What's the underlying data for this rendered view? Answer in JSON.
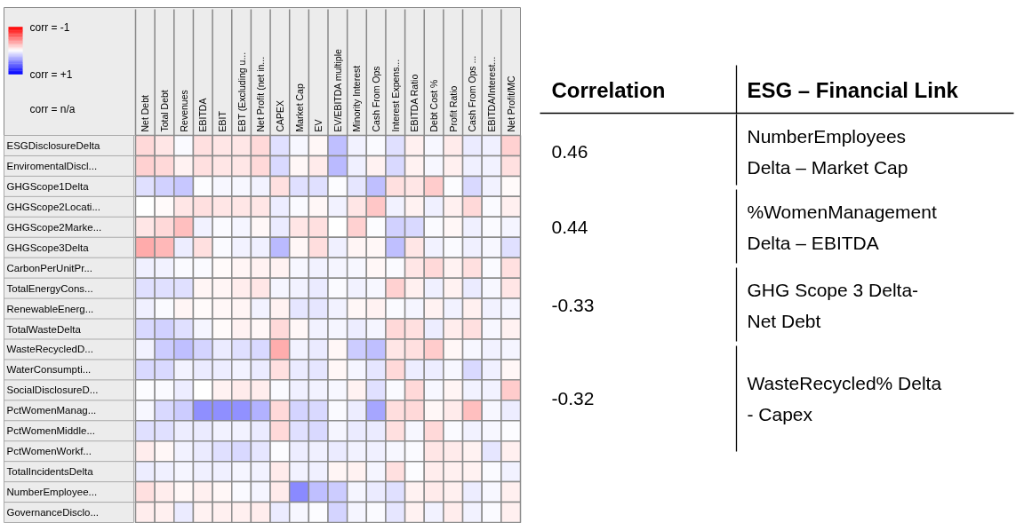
{
  "chart_data": [
    {
      "type": "heatmap",
      "categories": [
        "Net Debt",
        "Total Debt",
        "Revenues",
        "EBITDA",
        "EBIT",
        "EBT (Excluding u...",
        "Net Profit (net in...",
        "CAPEX",
        "Market Cap",
        "EV",
        "EV/EBITDA multiple",
        "Minority Interest",
        "Cash From Ops",
        "Interest Expens...",
        "EBITDA Ratio",
        "Debt Cost %",
        "Profit Ratio",
        "Cash From Ops ...",
        "EBITDA/Interest...",
        "Net Profit/MC"
      ],
      "y_categories": [
        "ESGDisclosureDelta",
        "EnviromentalDiscl...",
        "GHGScope1Delta",
        "GHGScope2Locati...",
        "GHGScope2Marke...",
        "GHGScope3Delta",
        "CarbonPerUnitPr...",
        "TotalEnergyCons...",
        "RenewableEnerg...",
        "TotalWasteDelta",
        "WasteRecycledD...",
        "WaterConsumpti...",
        "SocialDisclosureD...",
        "PctWomenManag...",
        "PctWomenMiddle...",
        "PctWomenWorkf...",
        "TotalIncidentsDelta",
        "NumberEmployee...",
        "GovernanceDisclo..."
      ],
      "cells": [
        [
          -0.15,
          -0.1,
          0.02,
          -0.12,
          -0.1,
          -0.1,
          -0.15,
          0.12,
          0.03,
          -0.03,
          0.25,
          0.05,
          0.02,
          0.12,
          -0.06,
          0.03,
          -0.08,
          0.08,
          0.06,
          -0.18
        ],
        [
          -0.18,
          -0.15,
          -0.05,
          -0.12,
          -0.1,
          -0.1,
          -0.15,
          0.15,
          -0.03,
          -0.08,
          0.27,
          0.06,
          -0.05,
          0.15,
          -0.05,
          0.03,
          -0.06,
          0.06,
          0.05,
          -0.12
        ],
        [
          0.12,
          0.18,
          0.22,
          0.01,
          0.03,
          0.03,
          0.05,
          -0.12,
          0.12,
          0.12,
          0.01,
          0.1,
          0.25,
          -0.12,
          -0.1,
          -0.2,
          0.01,
          0.15,
          0.05,
          -0.02
        ],
        [
          0.0,
          -0.02,
          -0.1,
          -0.12,
          -0.1,
          -0.1,
          -0.1,
          0.07,
          0.02,
          -0.03,
          0.05,
          -0.1,
          -0.22,
          0.05,
          -0.05,
          0.06,
          -0.06,
          -0.15,
          0.02,
          -0.06
        ],
        [
          -0.1,
          -0.15,
          -0.25,
          0.05,
          0.02,
          0.04,
          -0.03,
          0.08,
          -0.1,
          -0.12,
          0.0,
          -0.18,
          0.01,
          0.18,
          0.15,
          0.02,
          -0.03,
          0.06,
          0.02,
          0.04
        ],
        [
          -0.33,
          -0.28,
          0.07,
          -0.12,
          0.02,
          0.05,
          0.06,
          0.27,
          -0.03,
          -0.13,
          0.06,
          -0.04,
          -0.03,
          0.25,
          -0.1,
          0.05,
          0.02,
          0.06,
          0.03,
          0.12
        ],
        [
          0.06,
          0.05,
          0.02,
          0.02,
          -0.02,
          -0.04,
          -0.05,
          -0.05,
          0.03,
          0.05,
          0.04,
          0.03,
          -0.03,
          0.02,
          -0.1,
          -0.15,
          -0.05,
          -0.12,
          0.02,
          -0.12
        ],
        [
          0.12,
          0.12,
          0.12,
          -0.04,
          -0.04,
          -0.07,
          -0.1,
          0.04,
          0.05,
          0.08,
          0.02,
          0.05,
          0.03,
          -0.18,
          -0.06,
          0.06,
          -0.05,
          0.08,
          0.03,
          -0.1
        ],
        [
          0.06,
          0.02,
          -0.04,
          -0.02,
          -0.03,
          -0.04,
          0.05,
          -0.05,
          0.1,
          0.1,
          0.05,
          -0.03,
          -0.05,
          0.02,
          0.04,
          -0.05,
          0.05,
          -0.06,
          0.05,
          0.04
        ],
        [
          0.15,
          0.18,
          0.12,
          0.04,
          -0.02,
          -0.05,
          -0.03,
          -0.15,
          -0.03,
          0.05,
          0.04,
          0.07,
          0.04,
          -0.15,
          -0.12,
          0.07,
          -0.07,
          -0.12,
          0.03,
          -0.05
        ],
        [
          0.05,
          0.2,
          0.25,
          0.17,
          0.08,
          0.12,
          0.15,
          -0.32,
          0.05,
          0.08,
          -0.03,
          0.2,
          0.25,
          -0.1,
          -0.12,
          -0.2,
          -0.03,
          0.03,
          0.05,
          0.04
        ],
        [
          0.15,
          0.15,
          0.05,
          0.08,
          0.07,
          0.05,
          0.08,
          -0.12,
          0.08,
          0.1,
          -0.03,
          0.04,
          0.1,
          -0.15,
          0.07,
          0.07,
          0.03,
          0.15,
          0.06,
          -0.03
        ],
        [
          0.01,
          0.02,
          0.07,
          0.0,
          -0.05,
          -0.08,
          -0.07,
          0.02,
          0.06,
          0.05,
          0.03,
          -0.05,
          0.12,
          0.02,
          -0.15,
          0.03,
          -0.04,
          0.05,
          0.05,
          -0.2
        ],
        [
          0.03,
          0.15,
          0.2,
          0.44,
          0.44,
          0.43,
          0.3,
          -0.15,
          0.17,
          0.15,
          0.02,
          0.07,
          0.35,
          -0.13,
          -0.15,
          -0.03,
          -0.08,
          -0.25,
          0.03,
          0.07
        ],
        [
          0.12,
          0.12,
          0.07,
          0.08,
          0.05,
          0.05,
          0.08,
          -0.15,
          0.12,
          0.15,
          0.04,
          0.08,
          0.08,
          -0.12,
          0.03,
          -0.15,
          0.02,
          0.05,
          0.03,
          0.01
        ],
        [
          -0.07,
          -0.03,
          0.05,
          0.08,
          0.12,
          0.15,
          0.1,
          0.01,
          0.07,
          0.06,
          0.08,
          0.05,
          0.06,
          0.03,
          0.02,
          -0.1,
          -0.08,
          -0.05,
          0.1,
          -0.06
        ],
        [
          0.07,
          0.06,
          0.04,
          0.06,
          0.06,
          0.04,
          0.05,
          -0.08,
          0.05,
          0.06,
          -0.04,
          -0.05,
          0.04,
          -0.12,
          0.01,
          -0.07,
          -0.06,
          -0.05,
          0.02,
          0.05
        ],
        [
          -0.12,
          -0.07,
          -0.03,
          -0.06,
          -0.03,
          0.02,
          0.04,
          -0.08,
          0.46,
          0.25,
          0.2,
          0.04,
          0.08,
          0.12,
          -0.05,
          -0.08,
          -0.06,
          0.07,
          0.03,
          -0.06
        ],
        [
          -0.07,
          -0.06,
          0.08,
          -0.05,
          -0.06,
          -0.06,
          -0.07,
          0.08,
          0.03,
          0.01,
          0.17,
          0.04,
          0.02,
          0.1,
          -0.05,
          0.05,
          -0.07,
          0.05,
          0.02,
          -0.06
        ]
      ],
      "clim": [
        -1,
        1
      ],
      "cticks": [
        {
          "value": -1,
          "label": "corr = -1"
        },
        {
          "value": 1,
          "label": "corr = +1"
        }
      ],
      "annotations": [
        "corr = n/a"
      ]
    },
    {
      "type": "other",
      "annotations": [
        "Correlation",
        "ESG – Financial Link"
      ],
      "categories": [
        "NumberEmployees Delta – Market Cap",
        "%WomenManagement Delta – EBITDA",
        "GHG Scope 3 Delta- Net Debt",
        "WasteRecycled% Delta - Capex"
      ],
      "values": [
        0.46,
        0.44,
        -0.33,
        -0.32
      ],
      "data_labels": true
    }
  ]
}
